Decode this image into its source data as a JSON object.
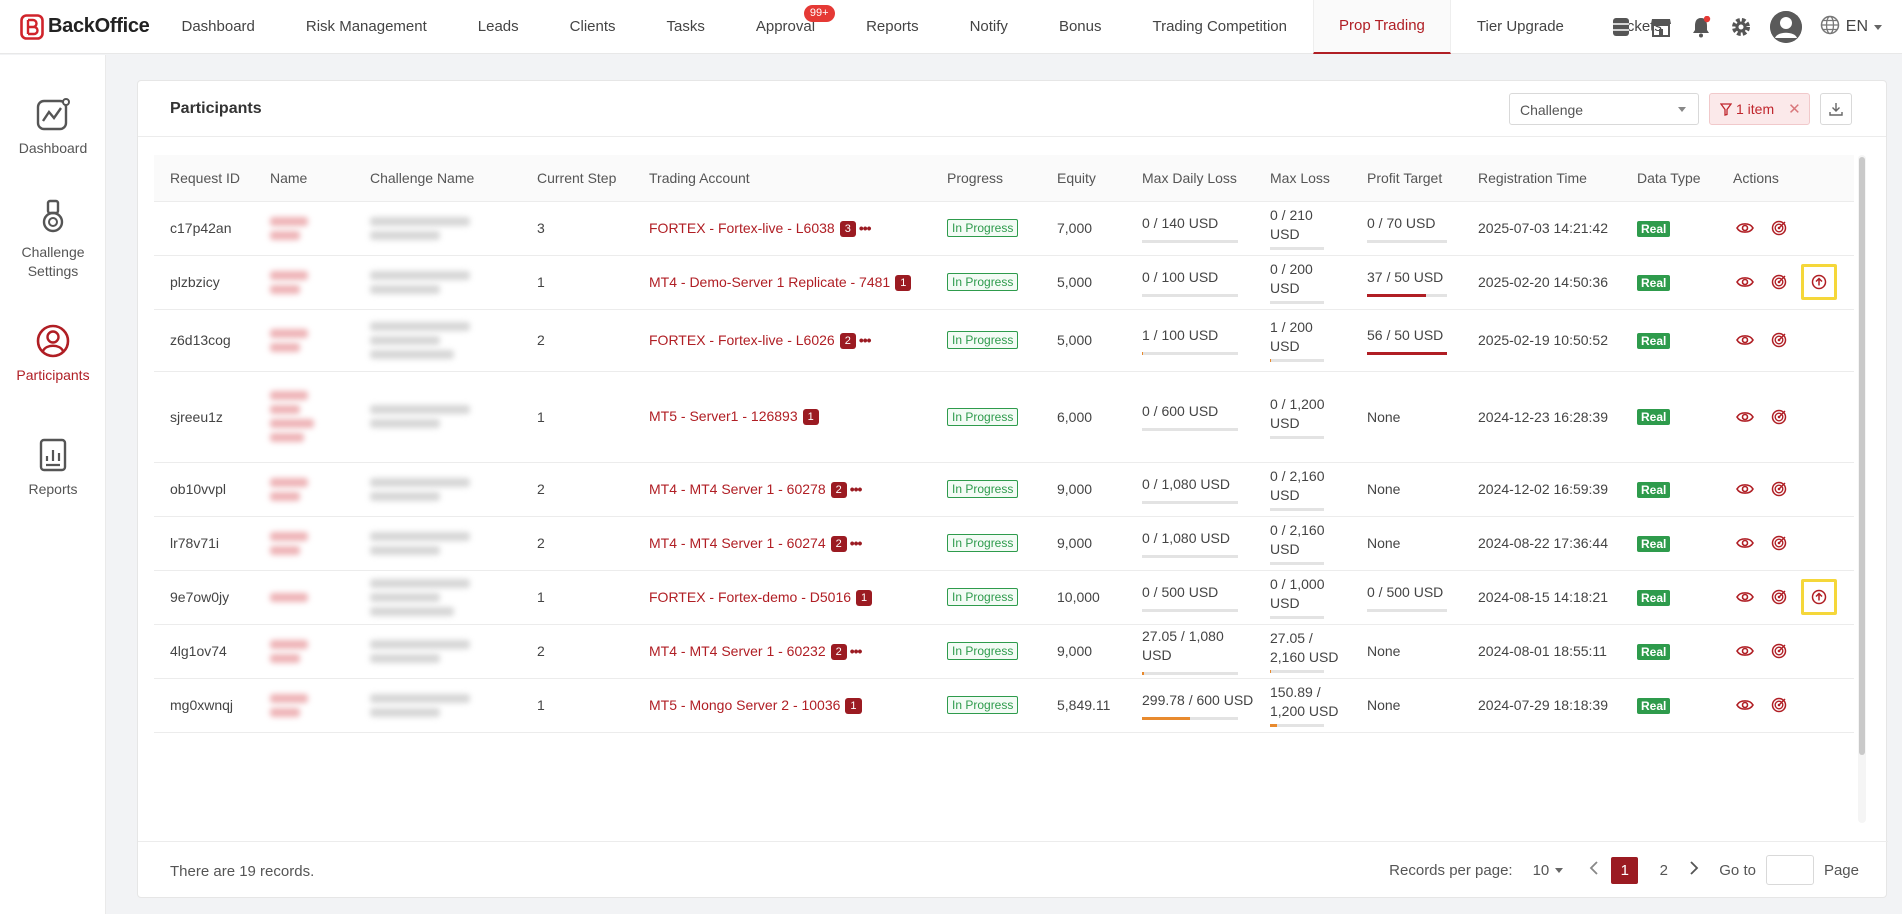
{
  "app": {
    "name": "BackOffice",
    "brand_color": "#b01e24"
  },
  "nav": {
    "items": [
      {
        "label": "Dashboard"
      },
      {
        "label": "Risk Management"
      },
      {
        "label": "Leads"
      },
      {
        "label": "Clients"
      },
      {
        "label": "Tasks"
      },
      {
        "label": "Approval",
        "badge": "99+"
      },
      {
        "label": "Reports"
      },
      {
        "label": "Notify"
      },
      {
        "label": "Bonus"
      },
      {
        "label": "Trading Competition"
      },
      {
        "label": "Prop Trading",
        "active": true
      },
      {
        "label": "Tier Upgrade"
      },
      {
        "label": "Tickets"
      }
    ],
    "language": "EN"
  },
  "sidebar": {
    "items": [
      {
        "label": "Dashboard"
      },
      {
        "label": "Challenge Settings"
      },
      {
        "label": "Participants",
        "active": true
      },
      {
        "label": "Reports"
      }
    ]
  },
  "card": {
    "title": "Participants",
    "filter_select": "Challenge",
    "filter_chip": "1 item"
  },
  "table": {
    "headers": [
      "Request ID",
      "Name",
      "Challenge Name",
      "Current Step",
      "Trading Account",
      "Progress",
      "Equity",
      "Max Daily Loss",
      "Max Loss",
      "Profit Target",
      "Registration Time",
      "Data Type",
      "Actions"
    ],
    "rows": [
      {
        "id": "c17p42an",
        "step": "3",
        "account": "FORTEX - Fortex-live - L6038",
        "acct_count": "3",
        "more": true,
        "progress": "In Progress",
        "equity": "7,000",
        "mdl": "0 / 140 USD",
        "mdl_frac": 0,
        "ml1": "0 / 210",
        "ml2": "USD",
        "ml_frac": 0,
        "pt": "0 / 70 USD",
        "pt_frac": 0,
        "reg": "2025-07-03 14:21:42",
        "type": "Real",
        "upload": false
      },
      {
        "id": "plzbzicy",
        "step": "1",
        "account": "MT4 - Demo-Server 1 Replicate - 7481",
        "acct_count": "1",
        "more": false,
        "progress": "In Progress",
        "equity": "5,000",
        "mdl": "0 / 100 USD",
        "mdl_frac": 0,
        "ml1": "0 / 200",
        "ml2": "USD",
        "ml_frac": 0,
        "pt": "37 / 50 USD",
        "pt_frac": 0.74,
        "reg": "2025-02-20 14:50:36",
        "type": "Real",
        "upload": true
      },
      {
        "id": "z6d13cog",
        "step": "2",
        "account": "FORTEX - Fortex-live - L6026",
        "acct_count": "2",
        "more": true,
        "progress": "In Progress",
        "equity": "5,000",
        "mdl": "1 / 100 USD",
        "mdl_frac": 0.01,
        "ml1": "1 / 200",
        "ml2": "USD",
        "ml_frac": 0.005,
        "pt": "56 / 50 USD",
        "pt_frac": 1,
        "reg": "2025-02-19 10:50:52",
        "type": "Real",
        "upload": false
      },
      {
        "id": "sjreeu1z",
        "step": "1",
        "account": "MT5 - Server1 - 126893",
        "acct_count": "1",
        "more": false,
        "progress": "In Progress",
        "equity": "6,000",
        "mdl": "0 / 600 USD",
        "mdl_frac": 0,
        "ml1": "0 / 1,200",
        "ml2": "USD",
        "ml_frac": 0,
        "pt": "None",
        "pt_frac": null,
        "reg": "2024-12-23 16:28:39",
        "type": "Real",
        "upload": false
      },
      {
        "id": "ob10vvpl",
        "step": "2",
        "account": "MT4 - MT4 Server 1 - 60278",
        "acct_count": "2",
        "more": true,
        "progress": "In Progress",
        "equity": "9,000",
        "mdl": "0 / 1,080 USD",
        "mdl_frac": 0,
        "ml1": "0 / 2,160",
        "ml2": "USD",
        "ml_frac": 0,
        "pt": "None",
        "pt_frac": null,
        "reg": "2024-12-02 16:59:39",
        "type": "Real",
        "upload": false
      },
      {
        "id": "lr78v71i",
        "step": "2",
        "account": "MT4 - MT4 Server 1 - 60274",
        "acct_count": "2",
        "more": true,
        "progress": "In Progress",
        "equity": "9,000",
        "mdl": "0 / 1,080 USD",
        "mdl_frac": 0,
        "ml1": "0 / 2,160",
        "ml2": "USD",
        "ml_frac": 0,
        "pt": "None",
        "pt_frac": null,
        "reg": "2024-08-22 17:36:44",
        "type": "Real",
        "upload": false
      },
      {
        "id": "9e7ow0jy",
        "step": "1",
        "account": "FORTEX - Fortex-demo - D5016",
        "acct_count": "1",
        "more": false,
        "progress": "In Progress",
        "equity": "10,000",
        "mdl": "0 / 500 USD",
        "mdl_frac": 0,
        "ml1": "0 / 1,000",
        "ml2": "USD",
        "ml_frac": 0,
        "pt": "0 / 500 USD",
        "pt_frac": 0,
        "reg": "2024-08-15 14:18:21",
        "type": "Real",
        "upload": true
      },
      {
        "id": "4lg1ov74",
        "step": "2",
        "account": "MT4 - MT4 Server 1 - 60232",
        "acct_count": "2",
        "more": true,
        "progress": "In Progress",
        "equity": "9,000",
        "mdl": "27.05 / 1,080 USD",
        "mdl_frac": 0.025,
        "ml1": "27.05 /",
        "ml2": "2,160 USD",
        "ml_frac": 0.0125,
        "pt": "None",
        "pt_frac": null,
        "reg": "2024-08-01 18:55:11",
        "type": "Real",
        "upload": false
      },
      {
        "id": "mg0xwnqj",
        "step": "1",
        "account": "MT5 - Mongo Server 2 - 10036",
        "acct_count": "1",
        "more": false,
        "progress": "In Progress",
        "equity": "5,849.11",
        "mdl": "299.78 / 600 USD",
        "mdl_frac": 0.5,
        "ml1": "150.89 /",
        "ml2": "1,200 USD",
        "ml_frac": 0.126,
        "pt": "None",
        "pt_frac": null,
        "reg": "2024-07-29 18:18:39",
        "type": "Real",
        "upload": false
      }
    ]
  },
  "footer": {
    "records": "There are 19 records.",
    "per_page_label": "Records per page:",
    "per_page": "10",
    "pages": [
      "1",
      "2"
    ],
    "current_page": "1",
    "goto_label": "Go to",
    "page_label": "Page"
  }
}
